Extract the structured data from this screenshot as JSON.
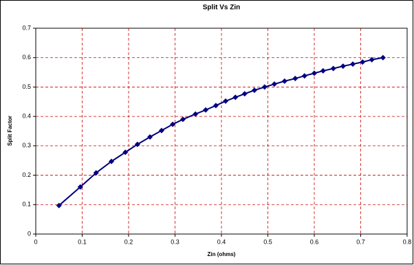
{
  "chart_data": {
    "type": "line",
    "title": "Split Vs Zin",
    "x_label": "Zin (ohms)",
    "y_label": "Split Factor",
    "x": [
      0.05,
      0.096,
      0.13,
      0.163,
      0.193,
      0.219,
      0.246,
      0.271,
      0.295,
      0.317,
      0.344,
      0.366,
      0.388,
      0.409,
      0.43,
      0.45,
      0.471,
      0.493,
      0.514,
      0.536,
      0.559,
      0.579,
      0.6,
      0.619,
      0.641,
      0.662,
      0.683,
      0.704,
      0.724,
      0.748
    ],
    "series": [
      {
        "color": "#000080",
        "values": [
          0.097,
          0.16,
          0.208,
          0.247,
          0.278,
          0.305,
          0.33,
          0.352,
          0.373,
          0.39,
          0.408,
          0.422,
          0.437,
          0.452,
          0.465,
          0.477,
          0.489,
          0.5,
          0.51,
          0.52,
          0.529,
          0.538,
          0.547,
          0.555,
          0.563,
          0.571,
          0.578,
          0.585,
          0.593,
          0.6
        ]
      }
    ],
    "xlim": [
      0,
      0.8
    ],
    "xticks": [
      0,
      0.1,
      0.2,
      0.3,
      0.4,
      0.5,
      0.6,
      0.7,
      0.8
    ],
    "ylim": [
      0,
      0.7
    ],
    "yticks": [
      0,
      0.1,
      0.2,
      0.3,
      0.4,
      0.5,
      0.6,
      0.7
    ],
    "grid": true,
    "grid_color": "#cc0000"
  }
}
